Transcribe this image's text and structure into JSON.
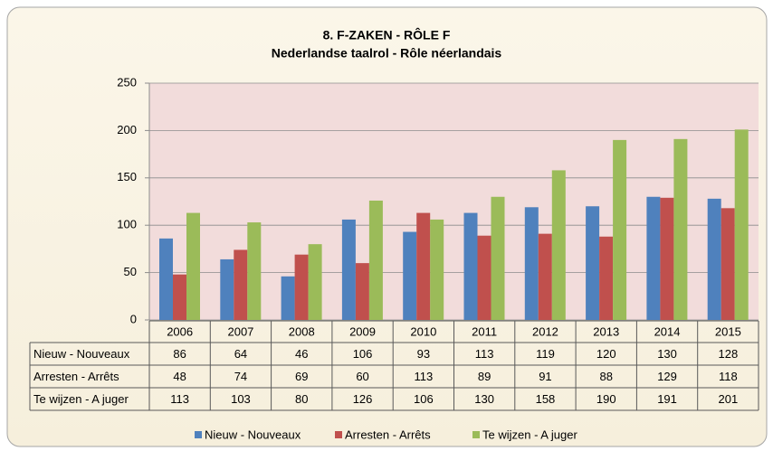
{
  "chart_data": {
    "type": "bar",
    "title": "8. F-ZAKEN - RÔLE F",
    "subtitle": "Nederlandse taalrol - Rôle néerlandais",
    "categories": [
      "2006",
      "2007",
      "2008",
      "2009",
      "2010",
      "2011",
      "2012",
      "2013",
      "2014",
      "2015"
    ],
    "series": [
      {
        "name": "Nieuw - Nouveaux",
        "color": "#4f81bd",
        "values": [
          86,
          64,
          46,
          106,
          93,
          113,
          119,
          120,
          130,
          128
        ]
      },
      {
        "name": "Arresten - Arrêts",
        "color": "#c0504d",
        "values": [
          48,
          74,
          69,
          60,
          113,
          89,
          91,
          88,
          129,
          118
        ]
      },
      {
        "name": "Te wijzen - A juger",
        "color": "#9bbb59",
        "values": [
          113,
          103,
          80,
          126,
          106,
          130,
          158,
          190,
          191,
          201
        ]
      }
    ],
    "ylim": [
      0,
      250
    ],
    "yticks": [
      0,
      50,
      100,
      150,
      200,
      250
    ],
    "grid": true,
    "legend": "bottom"
  }
}
